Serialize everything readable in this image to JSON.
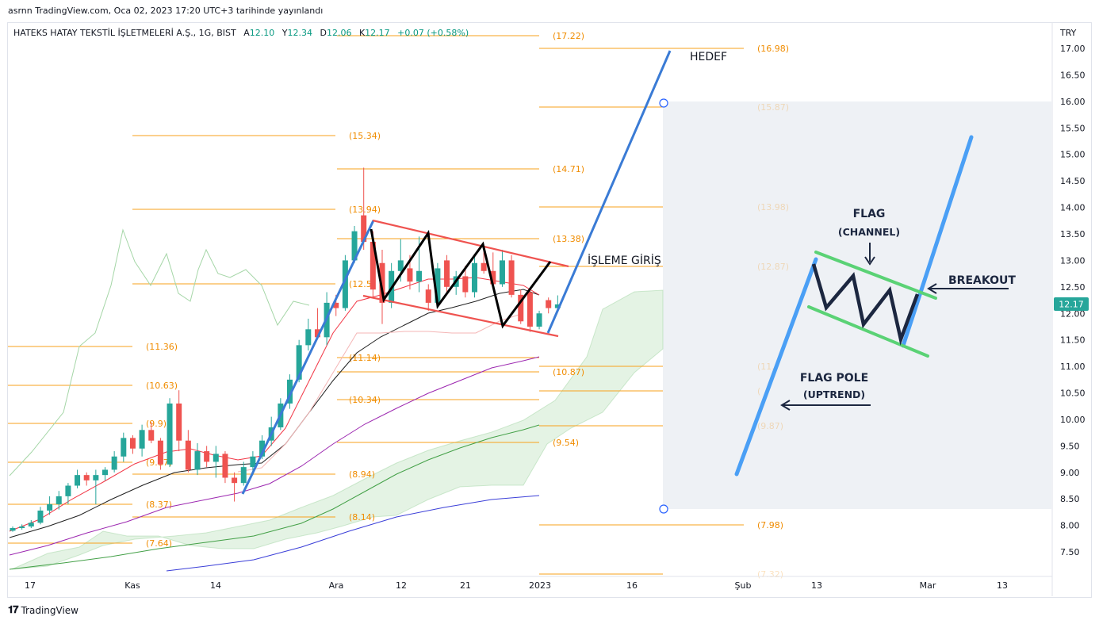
{
  "header": {
    "published": "asrnn TradingView.com, Oca 02, 2023 17:20 UTC+3 tarihinde yayınlandı"
  },
  "legend": {
    "symbol": "HATEKS HATAY TEKSTİL İŞLETMELERİ A.Ş., 1G, BIST",
    "o_label": "A",
    "o_value": "12.10",
    "h_label": "Y",
    "h_value": "12.34",
    "l_label": "D",
    "l_value": "12.06",
    "c_label": "K",
    "c_value": "12.17",
    "change": "+0.07 (+0.58%)"
  },
  "footer": {
    "brand": "TradingView",
    "brand_icon": "tradingview-logo-icon"
  },
  "colors": {
    "up": "#26a69a",
    "down": "#ef5350",
    "fib": "#f7a21b",
    "fib_text": "#f08c00",
    "trend": "#3a7bd5",
    "channel": "#ef5350",
    "zigzag": "#000000",
    "ema_red": "#f23645",
    "ema_black": "#202020",
    "ema_purple": "#9c27b0",
    "ema_green": "#43a047",
    "ema_blue": "#3b3fd8",
    "cloud": "#a5d6a7",
    "diagram_pole": "#4a9ff5",
    "diagram_flag": "#5ad275",
    "diagram_zig": "#1c2740"
  },
  "chart_data": {
    "type": "candlestick",
    "currency": "TRY",
    "last_price": "12.17",
    "y_axis": {
      "ylim": [
        7.2,
        17.4
      ],
      "ticks": [
        "17.00",
        "16.50",
        "16.00",
        "15.50",
        "15.00",
        "14.50",
        "14.00",
        "13.50",
        "13.00",
        "12.50",
        "12.00",
        "11.50",
        "11.00",
        "10.50",
        "10.00",
        "9.50",
        "9.00",
        "8.50",
        "8.00",
        "7.50"
      ]
    },
    "x_axis": {
      "ticks": [
        "17",
        "Kas",
        "14",
        "Ara",
        "12",
        "21",
        "2023",
        "16",
        "Şub",
        "13",
        "Mar",
        "13"
      ]
    },
    "candles": [
      {
        "o": 7.9,
        "h": 7.98,
        "l": 7.88,
        "c": 7.95
      },
      {
        "o": 7.95,
        "h": 8.02,
        "l": 7.92,
        "c": 7.98
      },
      {
        "o": 7.98,
        "h": 8.1,
        "l": 7.95,
        "c": 8.05
      },
      {
        "o": 8.05,
        "h": 8.35,
        "l": 8.02,
        "c": 8.28
      },
      {
        "o": 8.28,
        "h": 8.55,
        "l": 8.2,
        "c": 8.4
      },
      {
        "o": 8.4,
        "h": 8.65,
        "l": 8.3,
        "c": 8.55
      },
      {
        "o": 8.55,
        "h": 8.8,
        "l": 8.4,
        "c": 8.75
      },
      {
        "o": 8.75,
        "h": 9.05,
        "l": 8.7,
        "c": 8.95
      },
      {
        "o": 8.95,
        "h": 9.0,
        "l": 8.75,
        "c": 8.85
      },
      {
        "o": 8.85,
        "h": 9.05,
        "l": 8.4,
        "c": 8.95
      },
      {
        "o": 8.95,
        "h": 9.1,
        "l": 8.85,
        "c": 9.05
      },
      {
        "o": 9.05,
        "h": 9.4,
        "l": 9.0,
        "c": 9.3
      },
      {
        "o": 9.3,
        "h": 9.75,
        "l": 9.2,
        "c": 9.65
      },
      {
        "o": 9.65,
        "h": 9.7,
        "l": 9.35,
        "c": 9.45
      },
      {
        "o": 9.45,
        "h": 9.9,
        "l": 9.3,
        "c": 9.8
      },
      {
        "o": 9.8,
        "h": 9.95,
        "l": 9.55,
        "c": 9.6
      },
      {
        "o": 9.6,
        "h": 9.65,
        "l": 9.05,
        "c": 9.15
      },
      {
        "o": 9.15,
        "h": 10.4,
        "l": 9.1,
        "c": 10.3
      },
      {
        "o": 10.3,
        "h": 10.55,
        "l": 9.4,
        "c": 9.6
      },
      {
        "o": 9.6,
        "h": 9.8,
        "l": 9.0,
        "c": 9.05
      },
      {
        "o": 9.05,
        "h": 9.55,
        "l": 8.95,
        "c": 9.4
      },
      {
        "o": 9.4,
        "h": 9.5,
        "l": 9.1,
        "c": 9.2
      },
      {
        "o": 9.2,
        "h": 9.5,
        "l": 8.9,
        "c": 9.35
      },
      {
        "o": 9.35,
        "h": 9.4,
        "l": 8.8,
        "c": 8.9
      },
      {
        "o": 8.9,
        "h": 9.0,
        "l": 8.45,
        "c": 8.8
      },
      {
        "o": 8.8,
        "h": 9.2,
        "l": 8.75,
        "c": 9.1
      },
      {
        "o": 9.1,
        "h": 9.4,
        "l": 8.95,
        "c": 9.3
      },
      {
        "o": 9.3,
        "h": 9.7,
        "l": 9.25,
        "c": 9.6
      },
      {
        "o": 9.6,
        "h": 10.05,
        "l": 9.5,
        "c": 9.85
      },
      {
        "o": 9.85,
        "h": 10.4,
        "l": 9.8,
        "c": 10.3
      },
      {
        "o": 10.3,
        "h": 10.85,
        "l": 10.2,
        "c": 10.75
      },
      {
        "o": 10.75,
        "h": 11.5,
        "l": 10.7,
        "c": 11.4
      },
      {
        "o": 11.4,
        "h": 11.9,
        "l": 11.3,
        "c": 11.7
      },
      {
        "o": 11.7,
        "h": 12.1,
        "l": 11.55,
        "c": 11.55
      },
      {
        "o": 11.55,
        "h": 12.4,
        "l": 11.4,
        "c": 12.2
      },
      {
        "o": 12.2,
        "h": 12.35,
        "l": 11.95,
        "c": 12.1
      },
      {
        "o": 12.1,
        "h": 13.1,
        "l": 12.05,
        "c": 13.0
      },
      {
        "o": 13.0,
        "h": 13.65,
        "l": 12.95,
        "c": 13.55
      },
      {
        "o": 13.85,
        "h": 14.75,
        "l": 13.2,
        "c": 13.35
      },
      {
        "o": 13.35,
        "h": 13.55,
        "l": 12.3,
        "c": 12.45
      },
      {
        "o": 12.95,
        "h": 13.2,
        "l": 11.8,
        "c": 12.2
      },
      {
        "o": 12.2,
        "h": 12.95,
        "l": 12.1,
        "c": 12.8
      },
      {
        "o": 12.8,
        "h": 13.4,
        "l": 12.6,
        "c": 13.0
      },
      {
        "o": 12.85,
        "h": 13.1,
        "l": 12.45,
        "c": 12.6
      },
      {
        "o": 12.6,
        "h": 13.45,
        "l": 12.4,
        "c": 12.8
      },
      {
        "o": 12.45,
        "h": 12.55,
        "l": 12.05,
        "c": 12.2
      },
      {
        "o": 12.2,
        "h": 12.95,
        "l": 12.15,
        "c": 12.85
      },
      {
        "o": 13.0,
        "h": 13.1,
        "l": 12.4,
        "c": 12.5
      },
      {
        "o": 12.5,
        "h": 12.8,
        "l": 12.35,
        "c": 12.7
      },
      {
        "o": 12.7,
        "h": 12.9,
        "l": 12.3,
        "c": 12.4
      },
      {
        "o": 12.4,
        "h": 13.1,
        "l": 12.3,
        "c": 12.95
      },
      {
        "o": 12.95,
        "h": 13.25,
        "l": 12.75,
        "c": 12.8
      },
      {
        "o": 12.8,
        "h": 13.15,
        "l": 12.5,
        "c": 12.55
      },
      {
        "o": 12.55,
        "h": 13.2,
        "l": 12.5,
        "c": 13.0
      },
      {
        "o": 13.0,
        "h": 13.1,
        "l": 12.3,
        "c": 12.35
      },
      {
        "o": 12.35,
        "h": 12.45,
        "l": 11.8,
        "c": 11.85
      },
      {
        "o": 12.4,
        "h": 12.45,
        "l": 11.65,
        "c": 11.75
      },
      {
        "o": 11.75,
        "h": 12.05,
        "l": 11.7,
        "c": 12.0
      },
      {
        "o": 12.25,
        "h": 12.3,
        "l": 12.0,
        "c": 12.1
      },
      {
        "o": 12.1,
        "h": 12.34,
        "l": 12.06,
        "c": 12.17
      }
    ],
    "fibonacci_levels_left": [
      "(15.34)",
      "(13.94)",
      "(12.5",
      "(11.36)",
      "(11.14)",
      "(10.63)",
      "(10.34)",
      "(9.9)",
      "(9.17)",
      "(8.94)",
      "(8.37)",
      "(8.14)",
      "(7.64)"
    ],
    "fibonacci_levels_right": [
      "(17.22)",
      "(16.98)",
      "(14.71)",
      "(13.38)",
      "(10.87)",
      "(9.54)",
      "(7.98)"
    ],
    "fibonacci_faded": [
      "(15.87)",
      "(13.98)",
      "(12.87)",
      "(11.",
      "(",
      "(9.87)",
      "(7.32)"
    ],
    "annotations": {
      "target": "HEDEF",
      "entry": "İŞLEME GİRİŞ"
    },
    "diagram": {
      "flag": "FLAG",
      "channel": "(CHANNEL)",
      "pole": "FLAG POLE",
      "uptrend": "(UPTREND)",
      "breakout": "BREAKOUT"
    }
  }
}
